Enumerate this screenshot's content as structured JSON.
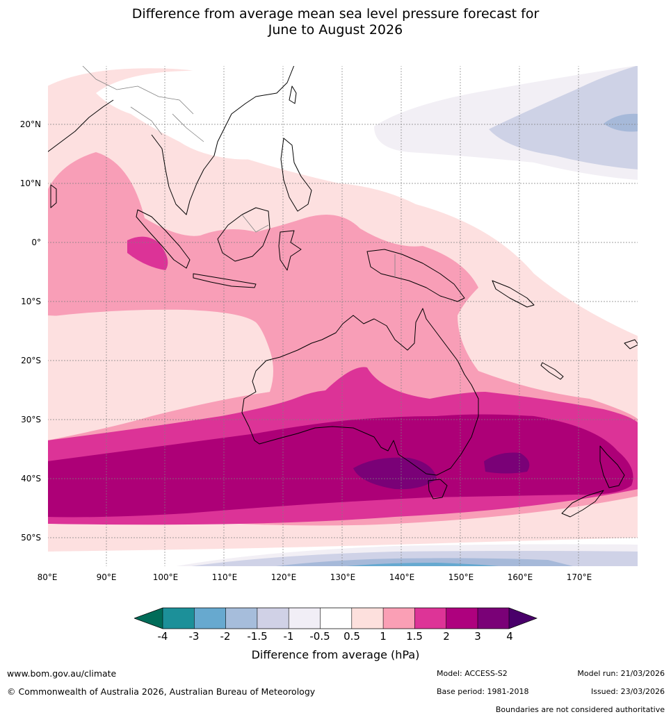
{
  "title": {
    "line1": "Difference from average mean sea level pressure forecast for",
    "line2": "June to August 2026"
  },
  "map": {
    "lat_labels": [
      "20°N",
      "10°N",
      "0°",
      "10°S",
      "20°S",
      "30°S",
      "40°S",
      "50°S"
    ],
    "lon_labels": [
      "80°E",
      "90°E",
      "100°E",
      "110°E",
      "120°E",
      "130°E",
      "140°E",
      "150°E",
      "160°E",
      "170°E"
    ],
    "colors": {
      "lt_m3": "#66a9d0",
      "m3_m2": "#a6b9d9",
      "m2_m15": "#ced2e6",
      "m15_m1": "#cfd2e7",
      "m1_m05": "#f2eff5",
      "m05_05": "#ffffff",
      "p05_1": "#fde0e0",
      "p1_15": "#f89eb7",
      "p15_2": "#dc3397",
      "p2_3": "#ad0077",
      "p3_4": "#7a0177",
      "coast": "#000000",
      "border": "#808080",
      "grid": "#808080"
    }
  },
  "colorbar": {
    "label": "Difference from average (hPa)",
    "ticks": [
      "-4",
      "-3",
      "-2",
      "-1.5",
      "-1",
      "-0.5",
      "0.5",
      "1",
      "1.5",
      "2",
      "3",
      "4"
    ],
    "colors": [
      "#016c59",
      "#1c9099",
      "#67a9cf",
      "#a6bddb",
      "#d0d1e6",
      "#f1eef6",
      "#ffffff",
      "#fde0dd",
      "#fa9fb5",
      "#dd3497",
      "#ae017e",
      "#7a0177",
      "#49006a"
    ]
  },
  "footer": {
    "website": "www.bom.gov.au/climate",
    "copyright": "© Commonwealth of Australia 2026, Australian Bureau of Meteorology",
    "model": "Model: ACCESS-S2",
    "base_period": "Base period: 1981-2018",
    "model_run": "Model run: 21/03/2026",
    "issued": "Issued: 23/03/2026",
    "disclaimer": "Boundaries are not considered authoritative"
  }
}
